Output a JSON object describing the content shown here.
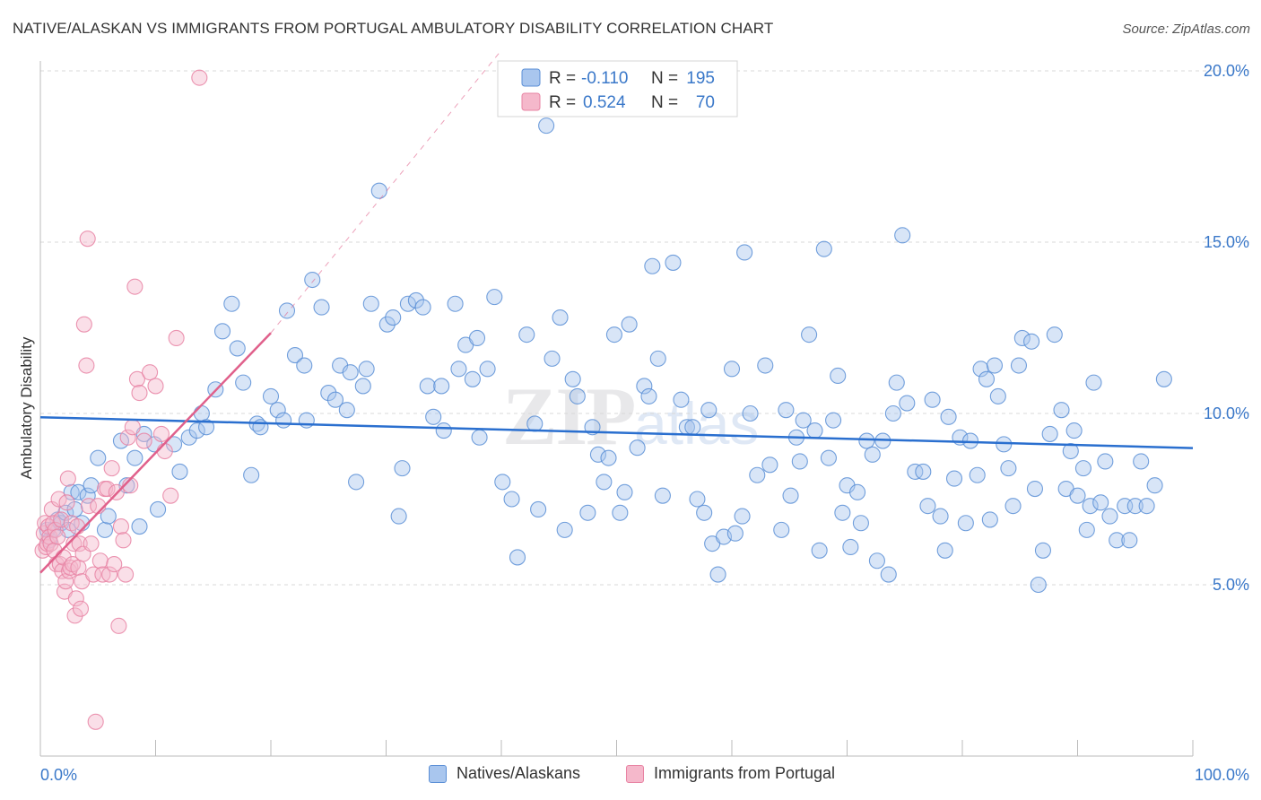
{
  "title": "NATIVE/ALASKAN VS IMMIGRANTS FROM PORTUGAL AMBULATORY DISABILITY CORRELATION CHART",
  "source": "Source: ZipAtlas.com",
  "watermark": {
    "zip": "ZIP",
    "atlas": "atlas"
  },
  "colors": {
    "blue_fill": "#a9c6ee",
    "blue_stroke": "#5b8fd6",
    "blue_line": "#2a6fcf",
    "pink_fill": "#f5b8cb",
    "pink_stroke": "#e883a3",
    "pink_line": "#e0608b",
    "axis_text": "#3a78c9",
    "grid": "#d8d8d8"
  },
  "legend_top": {
    "rows": [
      {
        "r_label": "R =",
        "r_value": "-0.110",
        "n_label": "N =",
        "n_value": "195",
        "series": "blue"
      },
      {
        "r_label": "R =",
        "r_value": "0.524",
        "n_label": "N =",
        "n_value": "70",
        "series": "pink"
      }
    ]
  },
  "legend_bottom": {
    "items": [
      {
        "label": "Natives/Alaskans",
        "series": "blue"
      },
      {
        "label": "Immigrants from Portugal",
        "series": "pink"
      }
    ]
  },
  "chart_data": {
    "type": "scatter",
    "title": "NATIVE/ALASKAN VS IMMIGRANTS FROM PORTUGAL AMBULATORY DISABILITY CORRELATION CHART",
    "xlabel": "",
    "ylabel": "Ambulatory Disability",
    "xlim": [
      0,
      100
    ],
    "ylim": [
      0,
      21
    ],
    "x_tick_labels": [
      "0.0%",
      "100.0%"
    ],
    "y_ticks": [
      5,
      10,
      15,
      20
    ],
    "y_tick_labels": [
      "5.0%",
      "10.0%",
      "15.0%",
      "20.0%"
    ],
    "grid": true,
    "legend_placement": "top-center",
    "series": [
      {
        "name": "Natives/Alaskans",
        "color": "#5b8fd6",
        "points": [
          [
            0.6,
            6.6
          ],
          [
            0.8,
            6.3
          ],
          [
            1.1,
            6.6
          ],
          [
            1.5,
            6.9
          ],
          [
            1.8,
            6.8
          ],
          [
            2.2,
            7.1
          ],
          [
            2.4,
            6.6
          ],
          [
            2.7,
            7.7
          ],
          [
            3.0,
            7.2
          ],
          [
            3.3,
            7.7
          ],
          [
            3.6,
            6.8
          ],
          [
            4.1,
            7.6
          ],
          [
            4.4,
            7.9
          ],
          [
            5.0,
            8.7
          ],
          [
            5.6,
            6.6
          ],
          [
            5.9,
            7.0
          ],
          [
            7.0,
            9.2
          ],
          [
            7.5,
            7.9
          ],
          [
            8.2,
            8.7
          ],
          [
            8.6,
            6.7
          ],
          [
            9.0,
            9.4
          ],
          [
            9.9,
            9.1
          ],
          [
            10.2,
            7.2
          ],
          [
            11.6,
            9.1
          ],
          [
            12.1,
            8.3
          ],
          [
            12.9,
            9.3
          ],
          [
            13.6,
            9.5
          ],
          [
            14.0,
            10.0
          ],
          [
            14.4,
            9.6
          ],
          [
            15.2,
            10.7
          ],
          [
            15.8,
            12.4
          ],
          [
            16.6,
            13.2
          ],
          [
            17.1,
            11.9
          ],
          [
            17.6,
            10.9
          ],
          [
            18.3,
            8.2
          ],
          [
            18.8,
            9.7
          ],
          [
            19.1,
            9.6
          ],
          [
            20.0,
            10.5
          ],
          [
            20.6,
            10.1
          ],
          [
            21.1,
            9.8
          ],
          [
            21.4,
            13.0
          ],
          [
            22.1,
            11.7
          ],
          [
            22.9,
            11.4
          ],
          [
            23.1,
            9.8
          ],
          [
            23.6,
            13.9
          ],
          [
            24.4,
            13.1
          ],
          [
            25.0,
            10.6
          ],
          [
            25.6,
            10.4
          ],
          [
            26.0,
            11.4
          ],
          [
            26.6,
            10.1
          ],
          [
            26.9,
            11.2
          ],
          [
            27.4,
            8.0
          ],
          [
            28.0,
            10.8
          ],
          [
            28.3,
            11.3
          ],
          [
            28.7,
            13.2
          ],
          [
            29.4,
            16.5
          ],
          [
            30.1,
            12.6
          ],
          [
            30.6,
            12.8
          ],
          [
            31.1,
            7.0
          ],
          [
            31.4,
            8.4
          ],
          [
            31.9,
            13.2
          ],
          [
            32.6,
            13.3
          ],
          [
            33.2,
            13.1
          ],
          [
            33.6,
            10.8
          ],
          [
            34.1,
            9.9
          ],
          [
            34.8,
            10.8
          ],
          [
            35.0,
            9.5
          ],
          [
            36.0,
            13.2
          ],
          [
            36.3,
            11.3
          ],
          [
            36.9,
            12.0
          ],
          [
            37.5,
            11.0
          ],
          [
            37.9,
            12.2
          ],
          [
            38.1,
            9.3
          ],
          [
            38.8,
            11.3
          ],
          [
            39.4,
            13.4
          ],
          [
            40.1,
            8.0
          ],
          [
            40.9,
            7.5
          ],
          [
            41.4,
            5.8
          ],
          [
            42.2,
            12.3
          ],
          [
            42.9,
            9.7
          ],
          [
            43.2,
            7.2
          ],
          [
            43.9,
            18.4
          ],
          [
            44.4,
            11.6
          ],
          [
            45.1,
            12.8
          ],
          [
            45.5,
            6.6
          ],
          [
            46.2,
            11.0
          ],
          [
            46.6,
            10.5
          ],
          [
            47.5,
            7.1
          ],
          [
            47.9,
            9.6
          ],
          [
            48.4,
            8.8
          ],
          [
            48.9,
            8.0
          ],
          [
            49.3,
            8.7
          ],
          [
            49.8,
            12.3
          ],
          [
            50.3,
            7.1
          ],
          [
            50.7,
            7.7
          ],
          [
            51.1,
            12.6
          ],
          [
            51.8,
            9.0
          ],
          [
            52.4,
            10.8
          ],
          [
            52.8,
            10.5
          ],
          [
            53.1,
            14.3
          ],
          [
            53.6,
            11.6
          ],
          [
            54.0,
            7.6
          ],
          [
            54.9,
            14.4
          ],
          [
            55.6,
            10.4
          ],
          [
            56.1,
            9.6
          ],
          [
            56.6,
            9.6
          ],
          [
            57.0,
            7.5
          ],
          [
            57.6,
            7.1
          ],
          [
            58.0,
            10.1
          ],
          [
            58.3,
            6.2
          ],
          [
            58.8,
            5.3
          ],
          [
            59.3,
            6.4
          ],
          [
            60.0,
            11.3
          ],
          [
            60.3,
            6.5
          ],
          [
            60.9,
            7.0
          ],
          [
            61.1,
            14.7
          ],
          [
            61.6,
            10.0
          ],
          [
            62.2,
            8.2
          ],
          [
            62.9,
            11.4
          ],
          [
            63.3,
            8.5
          ],
          [
            64.3,
            6.6
          ],
          [
            64.7,
            10.1
          ],
          [
            65.1,
            7.6
          ],
          [
            65.6,
            9.3
          ],
          [
            65.9,
            8.6
          ],
          [
            66.2,
            9.8
          ],
          [
            66.7,
            12.3
          ],
          [
            67.2,
            9.5
          ],
          [
            67.6,
            6.0
          ],
          [
            68.0,
            14.8
          ],
          [
            68.4,
            8.7
          ],
          [
            68.8,
            9.8
          ],
          [
            69.2,
            11.1
          ],
          [
            69.6,
            7.1
          ],
          [
            70.0,
            7.9
          ],
          [
            70.3,
            6.1
          ],
          [
            70.9,
            7.7
          ],
          [
            71.2,
            6.8
          ],
          [
            71.7,
            9.2
          ],
          [
            72.2,
            8.8
          ],
          [
            72.6,
            5.7
          ],
          [
            73.1,
            9.2
          ],
          [
            73.6,
            5.3
          ],
          [
            74.0,
            10.0
          ],
          [
            74.3,
            10.9
          ],
          [
            74.8,
            15.2
          ],
          [
            75.2,
            10.3
          ],
          [
            75.9,
            8.3
          ],
          [
            76.6,
            8.3
          ],
          [
            77.0,
            7.3
          ],
          [
            77.4,
            10.4
          ],
          [
            78.1,
            7.0
          ],
          [
            78.5,
            6.0
          ],
          [
            78.8,
            9.9
          ],
          [
            79.3,
            8.1
          ],
          [
            79.8,
            9.3
          ],
          [
            80.3,
            6.8
          ],
          [
            80.7,
            9.2
          ],
          [
            81.3,
            8.2
          ],
          [
            81.6,
            11.3
          ],
          [
            82.1,
            11.0
          ],
          [
            82.4,
            6.9
          ],
          [
            82.8,
            11.4
          ],
          [
            83.1,
            10.5
          ],
          [
            83.6,
            9.1
          ],
          [
            84.0,
            8.4
          ],
          [
            84.4,
            7.3
          ],
          [
            84.9,
            11.4
          ],
          [
            85.2,
            12.2
          ],
          [
            86.0,
            12.1
          ],
          [
            86.3,
            7.8
          ],
          [
            86.6,
            5.0
          ],
          [
            87.0,
            6.0
          ],
          [
            87.6,
            9.4
          ],
          [
            88.0,
            12.3
          ],
          [
            88.6,
            10.1
          ],
          [
            89.0,
            7.8
          ],
          [
            89.4,
            8.9
          ],
          [
            89.7,
            9.5
          ],
          [
            90.0,
            7.6
          ],
          [
            90.5,
            8.4
          ],
          [
            90.8,
            6.6
          ],
          [
            91.1,
            7.3
          ],
          [
            91.4,
            10.9
          ],
          [
            92.0,
            7.4
          ],
          [
            92.4,
            8.6
          ],
          [
            92.8,
            7.0
          ],
          [
            93.4,
            6.3
          ],
          [
            94.1,
            7.3
          ],
          [
            94.5,
            6.3
          ],
          [
            95.0,
            7.3
          ],
          [
            95.5,
            8.6
          ],
          [
            96.0,
            7.3
          ],
          [
            96.7,
            7.9
          ],
          [
            97.5,
            11.0
          ]
        ]
      },
      {
        "name": "Immigrants from Portugal",
        "color": "#e883a3",
        "points": [
          [
            0.2,
            6.0
          ],
          [
            0.3,
            6.5
          ],
          [
            0.4,
            6.8
          ],
          [
            0.5,
            6.1
          ],
          [
            0.6,
            6.2
          ],
          [
            0.7,
            6.7
          ],
          [
            0.8,
            6.4
          ],
          [
            0.9,
            6.2
          ],
          [
            1.0,
            7.2
          ],
          [
            1.1,
            6.8
          ],
          [
            1.2,
            6.0
          ],
          [
            1.3,
            6.6
          ],
          [
            1.4,
            5.6
          ],
          [
            1.5,
            6.4
          ],
          [
            1.6,
            7.5
          ],
          [
            1.7,
            5.6
          ],
          [
            1.8,
            6.9
          ],
          [
            1.9,
            5.4
          ],
          [
            2.0,
            5.8
          ],
          [
            2.1,
            4.8
          ],
          [
            2.2,
            5.1
          ],
          [
            2.3,
            7.4
          ],
          [
            2.4,
            8.1
          ],
          [
            2.5,
            5.4
          ],
          [
            2.6,
            5.5
          ],
          [
            2.7,
            6.8
          ],
          [
            2.8,
            5.6
          ],
          [
            2.9,
            6.2
          ],
          [
            3.0,
            4.1
          ],
          [
            3.1,
            4.6
          ],
          [
            3.2,
            6.7
          ],
          [
            3.3,
            5.5
          ],
          [
            3.4,
            6.2
          ],
          [
            3.5,
            4.3
          ],
          [
            3.6,
            5.1
          ],
          [
            3.7,
            5.9
          ],
          [
            3.8,
            12.6
          ],
          [
            4.0,
            11.4
          ],
          [
            4.1,
            15.1
          ],
          [
            4.2,
            7.3
          ],
          [
            4.4,
            6.2
          ],
          [
            4.6,
            5.3
          ],
          [
            4.8,
            1.0
          ],
          [
            5.0,
            7.3
          ],
          [
            5.2,
            5.7
          ],
          [
            5.4,
            5.3
          ],
          [
            5.6,
            7.8
          ],
          [
            5.8,
            7.8
          ],
          [
            6.0,
            5.3
          ],
          [
            6.2,
            8.4
          ],
          [
            6.4,
            5.6
          ],
          [
            6.6,
            7.7
          ],
          [
            6.8,
            3.8
          ],
          [
            7.0,
            6.7
          ],
          [
            7.2,
            6.3
          ],
          [
            7.4,
            5.3
          ],
          [
            7.6,
            9.3
          ],
          [
            7.8,
            7.9
          ],
          [
            8.0,
            9.6
          ],
          [
            8.2,
            13.7
          ],
          [
            8.4,
            11.0
          ],
          [
            8.6,
            10.6
          ],
          [
            9.0,
            9.2
          ],
          [
            9.5,
            11.2
          ],
          [
            10.0,
            10.8
          ],
          [
            10.5,
            9.4
          ],
          [
            10.8,
            8.9
          ],
          [
            11.3,
            7.6
          ],
          [
            11.8,
            12.2
          ],
          [
            13.8,
            19.8
          ]
        ]
      }
    ],
    "trend_lines": [
      {
        "series": "Natives/Alaskans",
        "x": [
          0,
          100
        ],
        "y": [
          9.89,
          8.99
        ],
        "style": "solid"
      },
      {
        "series": "Immigrants from Portugal",
        "x": [
          0,
          20
        ],
        "y": [
          5.35,
          12.35
        ],
        "style": "solid"
      },
      {
        "series": "Immigrants from Portugal",
        "x": [
          20,
          40
        ],
        "y": [
          12.35,
          20.6
        ],
        "style": "dashed"
      }
    ]
  }
}
